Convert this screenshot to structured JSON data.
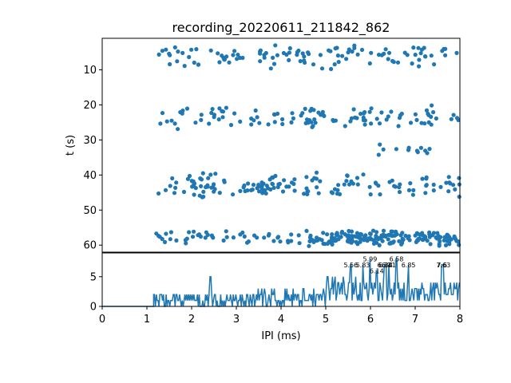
{
  "chart_data": [
    {
      "type": "scatter",
      "title": "recording_20220611_211842_862",
      "xlabel": "",
      "ylabel": "t (s)",
      "xlim": [
        0,
        8
      ],
      "ylim": [
        62,
        1
      ],
      "y_inverted": true,
      "yticks": [
        10,
        20,
        30,
        40,
        50,
        60
      ],
      "grid": false,
      "color": "#1f77b4",
      "bands": [
        {
          "t_center": 6,
          "t_spread": 4,
          "x_min": 1.2,
          "x_max": 8.0,
          "density": "medium"
        },
        {
          "t_center": 23.5,
          "t_spread": 3.5,
          "x_min": 1.2,
          "x_max": 8.0,
          "density": "medium"
        },
        {
          "t_center": 33,
          "t_spread": 3,
          "x_min": 6.0,
          "x_max": 7.5,
          "density": "low"
        },
        {
          "t_center": 43,
          "t_spread": 4,
          "x_min": 1.2,
          "x_max": 8.0,
          "density": "high"
        },
        {
          "t_center": 58,
          "t_spread": 2.5,
          "x_min": 1.2,
          "x_max": 8.0,
          "density": "very-high"
        }
      ]
    },
    {
      "type": "line",
      "xlabel": "IPI (ms)",
      "ylabel": "",
      "xlim": [
        0,
        8
      ],
      "ylim": [
        0,
        9
      ],
      "xticks": [
        0,
        1,
        2,
        3,
        4,
        5,
        6,
        7,
        8
      ],
      "yticks": [
        0,
        5
      ],
      "color": "#1f77b4",
      "peaks": [
        {
          "x": 5.56,
          "label": "5.56",
          "value": 7
        },
        {
          "x": 5.83,
          "label": "5.83",
          "value": 7
        },
        {
          "x": 5.99,
          "label": "5.99",
          "value": 8
        },
        {
          "x": 6.14,
          "label": "6.14",
          "value": 6
        },
        {
          "x": 6.31,
          "label": "6.31",
          "value": 7
        },
        {
          "x": 6.34,
          "label": "6.34",
          "value": 7
        },
        {
          "x": 6.41,
          "label": "6.41",
          "value": 7
        },
        {
          "x": 6.58,
          "label": "6.58",
          "value": 8
        },
        {
          "x": 6.85,
          "label": "6.85",
          "value": 7
        },
        {
          "x": 7.6,
          "label": "7.6",
          "value": 7
        },
        {
          "x": 7.63,
          "label": "7.63",
          "value": 7
        }
      ]
    }
  ]
}
